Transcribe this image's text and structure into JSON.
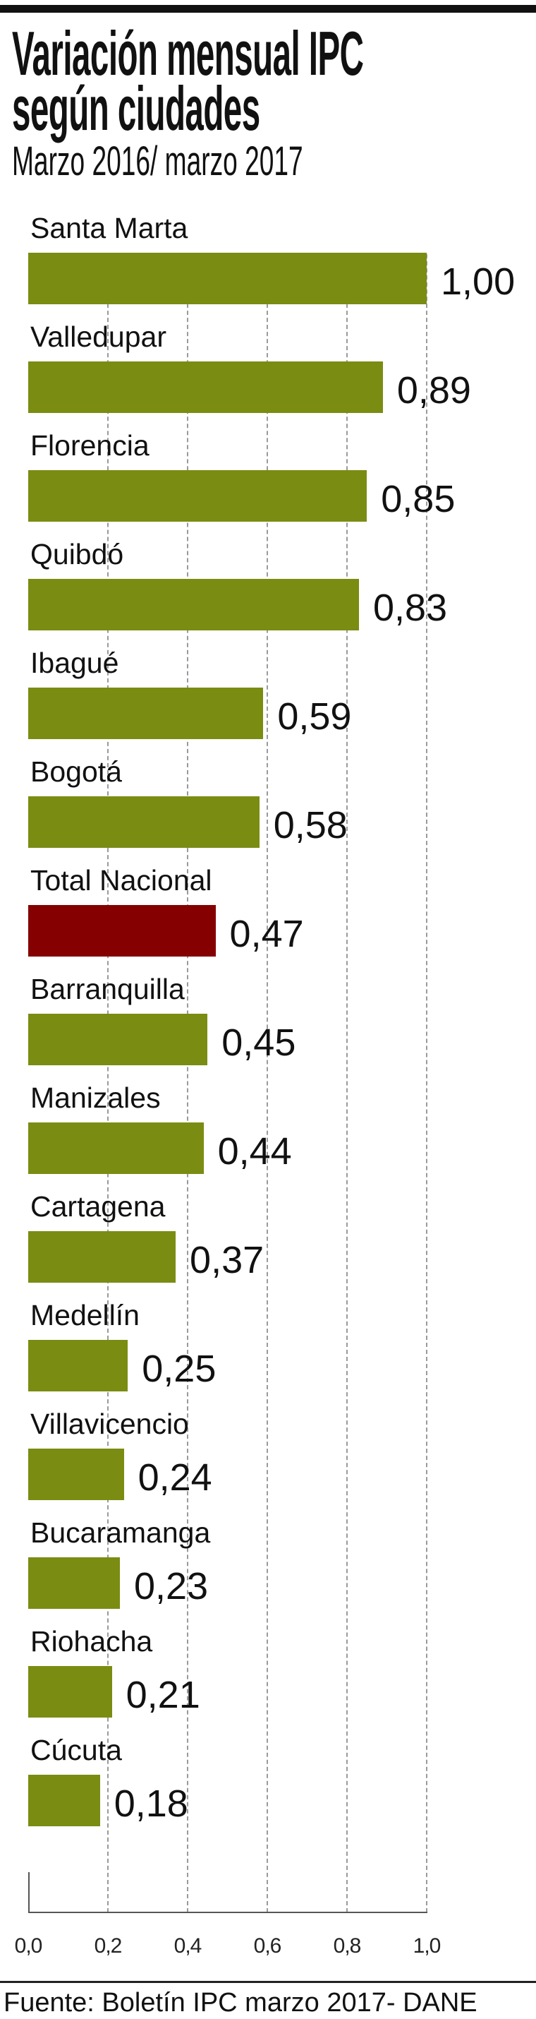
{
  "chart_data": {
    "type": "bar",
    "orientation": "horizontal",
    "title": "Variación mensual IPC según ciudades",
    "title_lines": [
      "Variación mensual IPC",
      "según ciudades"
    ],
    "subtitle": "Marzo 2016/ marzo 2017",
    "categories": [
      "Santa Marta",
      "Valledupar",
      "Florencia",
      "Quibdó",
      "Ibagué",
      "Bogotá",
      "Total Nacional",
      "Barranquilla",
      "Manizales",
      "Cartagena",
      "Medellín",
      "Villavicencio",
      "Bucaramanga",
      "Riohacha",
      "Cúcuta"
    ],
    "values": [
      1.0,
      0.89,
      0.85,
      0.83,
      0.59,
      0.58,
      0.47,
      0.45,
      0.44,
      0.37,
      0.25,
      0.24,
      0.23,
      0.21,
      0.18
    ],
    "value_labels": [
      "1,00",
      "0,89",
      "0,85",
      "0,83",
      "0,59",
      "0,58",
      "0,47",
      "0,45",
      "0,44",
      "0,37",
      "0,25",
      "0,24",
      "0,23",
      "0,21",
      "0,18"
    ],
    "highlight_category": "Total Nacional",
    "xlim": [
      0,
      1.0
    ],
    "xticks": [
      0,
      0.2,
      0.4,
      0.6,
      0.8,
      1.0
    ],
    "xtick_labels": [
      "0,0",
      "0,2",
      "0,4",
      "0,6",
      "0,8",
      "1,0"
    ],
    "grid": true,
    "colors": {
      "bar": "#7b8c12",
      "highlight": "#850000"
    },
    "source": "Fuente: Boletín IPC marzo 2017- DANE"
  }
}
